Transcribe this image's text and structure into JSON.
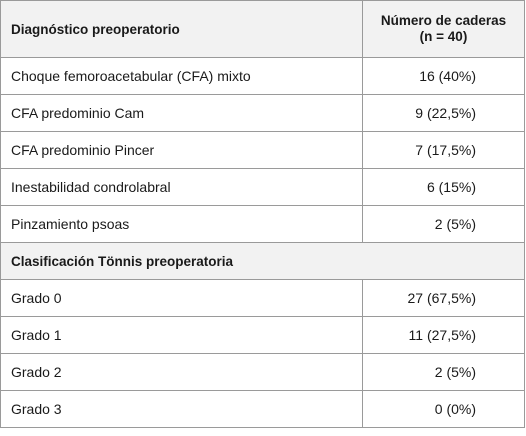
{
  "table": {
    "header": {
      "col1": "Diagnóstico preoperatorio",
      "col2_line1": "Número de caderas",
      "col2_line2": "(n = 40)"
    },
    "diagnosis_rows": [
      {
        "label": "Choque femoroacetabular (CFA) mixto",
        "value": "16 (40%)"
      },
      {
        "label": "CFA predominio Cam",
        "value": "9 (22,5%)"
      },
      {
        "label": "CFA predominio Pincer",
        "value": "7 (17,5%)"
      },
      {
        "label": "Inestabilidad condrolabral",
        "value": "6 (15%)"
      },
      {
        "label": "Pinzamiento psoas",
        "value": "2 (5%)"
      }
    ],
    "section_title": "Clasificación Tönnis preoperatoria",
    "tonnis_rows": [
      {
        "label": "Grado 0",
        "value": "27 (67,5%)"
      },
      {
        "label": "Grado 1",
        "value": "11 (27,5%)"
      },
      {
        "label": "Grado 2",
        "value": "2 (5%)"
      },
      {
        "label": "Grado 3",
        "value": "0 (0%)"
      }
    ]
  }
}
